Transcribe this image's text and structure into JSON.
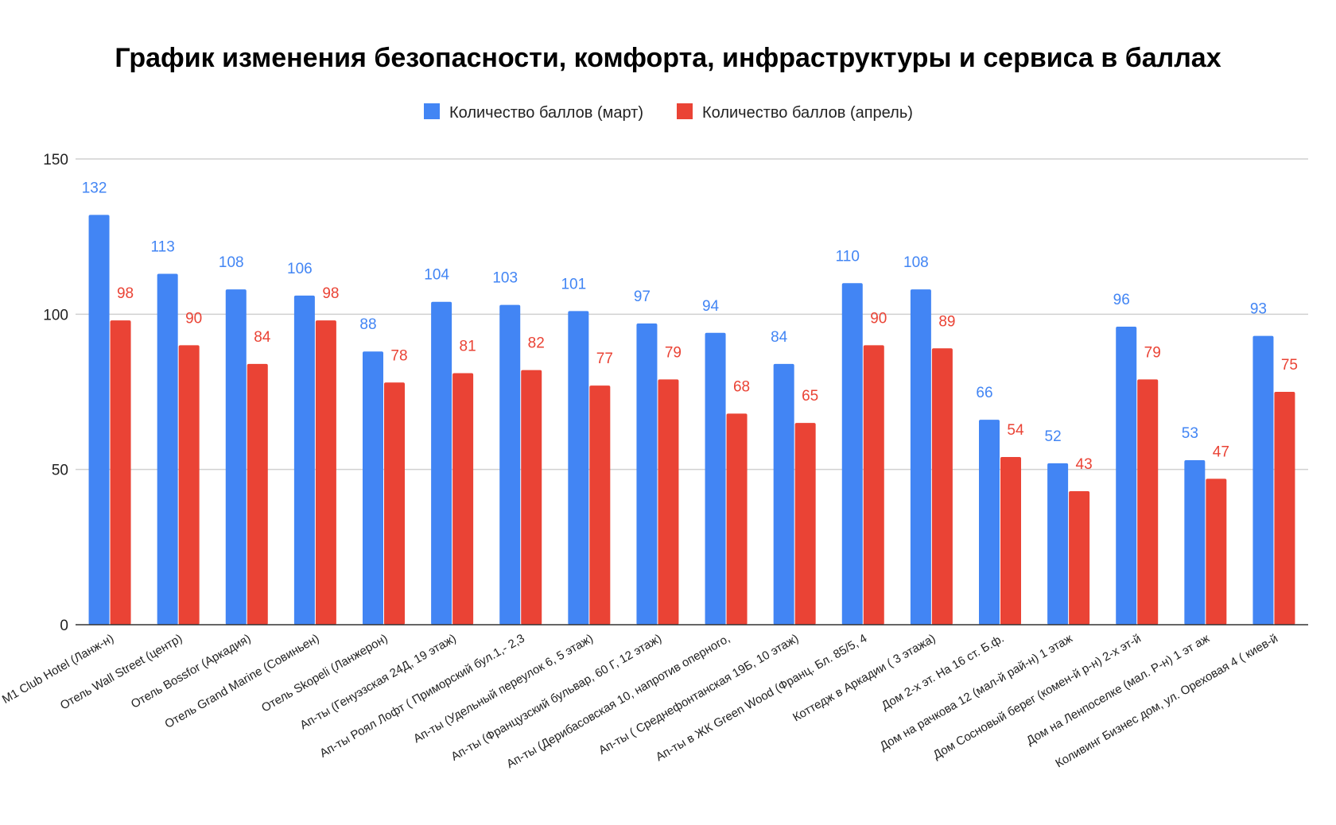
{
  "chart_data": {
    "type": "bar",
    "title": "График изменения безопасности, комфорта, инфраструктуры и сервиса в баллах",
    "xlabel": "",
    "ylabel": "",
    "ylim": [
      0,
      150
    ],
    "yticks": [
      0,
      50,
      100,
      150
    ],
    "grid": true,
    "legend_position": "top",
    "categories": [
      "М1 Club Hotel (Ланж-н)",
      "Отель Wall Street (центр)",
      "Отель Bossfor (Аркадия)",
      "Отель Grand Marine (Совиньен)",
      "Отель Skopeli (Ланжерон)",
      "Ап-ты (Генуэзская 24Д, 19 этаж)",
      "Ап-ты Роял Лофт ( Приморский бул.1,- 2,3",
      "Ап-ты (Удельный переулок 6, 5 этаж)",
      "Ап-ты (Французский бульвар, 60 Г, 12 этаж)",
      "Ап-ты (Дерибасовская 10, напротив оперного,",
      "Ап-ты ( Среднефонтанская 19Б, 10 этаж)",
      "Ап-ты в ЖК Green Wood (Франц. Бл. 85/5, 4",
      "Коттедж в Аркадии ( 3 этажа)",
      "Дом 2-х эт. На 16 ст. Б.ф.",
      "Дом на рачкова 12 (мал-й рай-н) 1 этаж",
      "Дом Сосновый берег (комен-й р-н) 2-х эт-й",
      "Дом на Ленпоселке (мал. Р-н) 1 эт аж",
      "Коливинг Бизнес дом, ул. Ореховая 4 ( киев-й"
    ],
    "series": [
      {
        "name": "Количество баллов (март)",
        "color": "#4285f4",
        "label_color": "#4285f4",
        "values": [
          132,
          113,
          108,
          106,
          88,
          104,
          103,
          101,
          97,
          94,
          84,
          110,
          108,
          66,
          52,
          96,
          53,
          93
        ]
      },
      {
        "name": "Количество баллов (апрель)",
        "color": "#ea4335",
        "label_color": "#ea4335",
        "values": [
          98,
          90,
          84,
          98,
          78,
          81,
          82,
          77,
          79,
          68,
          65,
          90,
          89,
          54,
          43,
          79,
          47,
          75
        ]
      }
    ]
  }
}
